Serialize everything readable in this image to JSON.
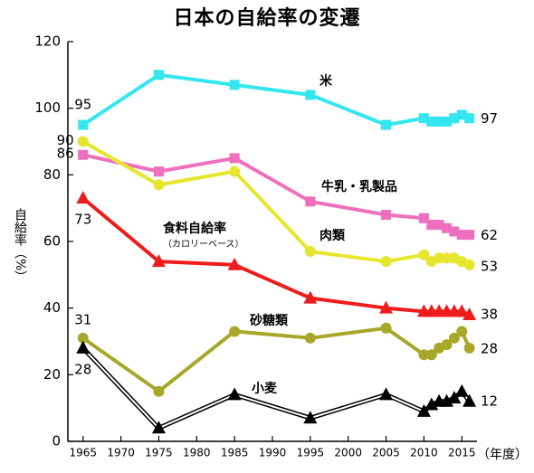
{
  "chart_data": {
    "type": "line",
    "title": "日本の自給率の変遷",
    "ylabel": "自給率（%）",
    "x_unit": "（年度）",
    "ylim": [
      0,
      120
    ],
    "xlim": [
      1963,
      2017
    ],
    "y_ticks": [
      0,
      20,
      40,
      60,
      80,
      100,
      120
    ],
    "x_ticks": [
      1965,
      1970,
      1975,
      1980,
      1985,
      1990,
      1995,
      2000,
      2005,
      2010,
      2015
    ],
    "grid": false,
    "series": [
      {
        "name": "米",
        "color": "#33e6f0",
        "marker": "square",
        "x": [
          1965,
          1975,
          1985,
          1995,
          2005,
          2010,
          2011,
          2012,
          2013,
          2014,
          2015,
          2016
        ],
        "y": [
          95,
          110,
          107,
          104,
          95,
          97,
          96,
          96,
          96,
          97,
          98,
          97
        ],
        "start_label": "95",
        "end_label": "97"
      },
      {
        "name": "牛乳・乳製品",
        "color": "#ee6fbd",
        "marker": "square",
        "x": [
          1965,
          1975,
          1985,
          1995,
          2005,
          2010,
          2011,
          2012,
          2013,
          2014,
          2015,
          2016
        ],
        "y": [
          86,
          81,
          85,
          72,
          68,
          67,
          65,
          65,
          64,
          63,
          62,
          62
        ],
        "start_label": "86",
        "end_label": "62"
      },
      {
        "name": "肉類",
        "color": "#e6e62e",
        "marker": "circle",
        "x": [
          1965,
          1975,
          1985,
          1995,
          2005,
          2010,
          2011,
          2012,
          2013,
          2014,
          2015,
          2016
        ],
        "y": [
          90,
          77,
          81,
          57,
          54,
          56,
          54,
          55,
          55,
          55,
          54,
          53
        ],
        "start_label": "90",
        "end_label": "53"
      },
      {
        "name": "食料自給率",
        "sublabel": "（カロリーベース）",
        "color": "#ee1c1c",
        "marker": "triangle",
        "x": [
          1965,
          1975,
          1985,
          1995,
          2005,
          2010,
          2011,
          2012,
          2013,
          2014,
          2015,
          2016
        ],
        "y": [
          73,
          54,
          53,
          43,
          40,
          39,
          39,
          39,
          39,
          39,
          39,
          38
        ],
        "start_label": "73",
        "end_label": "38"
      },
      {
        "name": "砂糖類",
        "color": "#a7a72a",
        "marker": "circle",
        "x": [
          1965,
          1975,
          1985,
          1995,
          2005,
          2010,
          2011,
          2012,
          2013,
          2014,
          2015,
          2016
        ],
        "y": [
          31,
          15,
          33,
          31,
          34,
          26,
          26,
          28,
          29,
          31,
          33,
          28
        ],
        "start_label": "31",
        "end_label": "28"
      },
      {
        "name": "小麦",
        "color": "#000000",
        "marker": "triangle",
        "x": [
          1965,
          1975,
          1985,
          1995,
          2005,
          2010,
          2011,
          2012,
          2013,
          2014,
          2015,
          2016
        ],
        "y": [
          28,
          4,
          14,
          7,
          14,
          9,
          11,
          12,
          12,
          13,
          15,
          12
        ],
        "start_label": "28",
        "end_label": "12"
      }
    ]
  }
}
